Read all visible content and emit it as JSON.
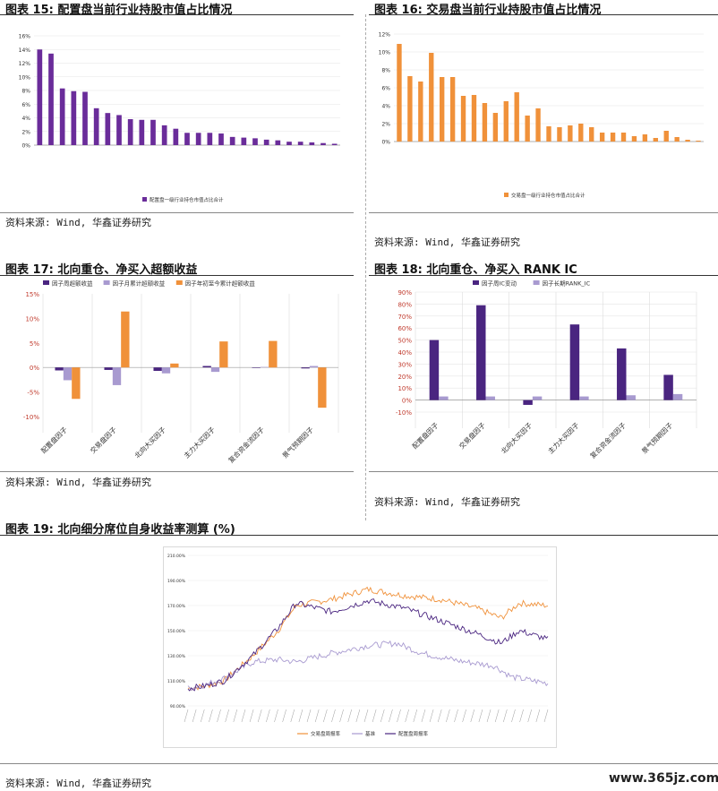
{
  "panels": {
    "p15": {
      "title": "图表 15: 配置盘当前行业持股市值占比情况",
      "source": "资料来源: Wind, 华鑫证券研究"
    },
    "p16": {
      "title": "图表 16: 交易盘当前行业持股市值占比情况",
      "source": "资料来源: Wind, 华鑫证券研究"
    },
    "p17": {
      "title": "图表 17: 北向重仓、净买入超额收益",
      "source": "资料来源: Wind, 华鑫证券研究"
    },
    "p18": {
      "title": "图表 18: 北向重仓、净买入 RANK IC",
      "source": "资料来源: Wind, 华鑫证券研究"
    },
    "p19": {
      "title": "图表 19: 北向细分席位自身收益率测算 (%)",
      "source": "资料来源: Wind, 华鑫证券研究"
    }
  },
  "watermark": "www.365jz.com",
  "colors": {
    "purple": "#6a2c9a",
    "orange": "#f0913a",
    "lavender": "#a89ad0",
    "dark_purple": "#4a2580"
  },
  "chart_data": [
    {
      "id": "c15",
      "type": "bar",
      "ylim": [
        0,
        16
      ],
      "yticks": [
        "0%",
        "2%",
        "4%",
        "6%",
        "8%",
        "10%",
        "12%",
        "14%",
        "16%"
      ],
      "values": [
        14.0,
        13.4,
        8.3,
        7.9,
        7.8,
        5.4,
        4.7,
        4.4,
        3.8,
        3.7,
        3.7,
        2.9,
        2.4,
        1.8,
        1.8,
        1.8,
        1.7,
        1.2,
        1.1,
        1.0,
        0.8,
        0.7,
        0.5,
        0.5,
        0.4,
        0.3,
        0.2
      ],
      "legend": "配置盘一级行业持仓市值占比合计",
      "color": "#6a2c9a"
    },
    {
      "id": "c16",
      "type": "bar",
      "ylim": [
        0,
        12
      ],
      "yticks": [
        "0%",
        "2%",
        "4%",
        "6%",
        "8%",
        "10%",
        "12%"
      ],
      "values": [
        10.9,
        7.3,
        6.7,
        9.9,
        7.2,
        7.2,
        5.1,
        5.2,
        4.3,
        3.2,
        4.5,
        5.5,
        2.9,
        3.7,
        1.7,
        1.6,
        1.8,
        2.0,
        1.6,
        1.0,
        1.0,
        1.0,
        0.6,
        0.8,
        0.4,
        1.2,
        0.5,
        0.2,
        0.1
      ],
      "legend": "交易盘一级行业持仓市值占比合计",
      "color": "#f0913a"
    },
    {
      "id": "c17",
      "type": "bar",
      "ylim": [
        -10,
        15
      ],
      "yticks": [
        "-10%",
        "-5%",
        "0%",
        "5%",
        "10%",
        "15%"
      ],
      "categories": [
        "配置盘因子",
        "交易盘因子",
        "北向大买因子",
        "主力大买因子",
        "复合资金流因子",
        "景气预期因子"
      ],
      "series": [
        {
          "name": "因子周超额收益",
          "color": "#4a2580",
          "values": [
            -0.6,
            -0.5,
            -0.7,
            0.3,
            -0.1,
            -0.2
          ]
        },
        {
          "name": "因子月累计超额收益",
          "color": "#a89ad0",
          "values": [
            -2.6,
            -3.6,
            -1.2,
            -0.9,
            0.1,
            0.3
          ]
        },
        {
          "name": "因子年初至今累计超额收益",
          "color": "#f0913a",
          "values": [
            -6.4,
            11.4,
            0.8,
            5.3,
            5.4,
            -8.2
          ]
        }
      ]
    },
    {
      "id": "c18",
      "type": "bar",
      "ylim": [
        -10,
        90
      ],
      "yticks": [
        "-10%",
        "0%",
        "10%",
        "20%",
        "30%",
        "40%",
        "50%",
        "60%",
        "70%",
        "80%",
        "90%"
      ],
      "categories": [
        "配置盘因子",
        "交易盘因子",
        "北向大买因子",
        "主力大买因子",
        "复合资金流因子",
        "景气预期因子"
      ],
      "series": [
        {
          "name": "因子周IC变动",
          "color": "#4a2580",
          "values": [
            50,
            79,
            -4,
            63,
            43,
            21
          ]
        },
        {
          "name": "因子长期RANK_IC",
          "color": "#a89ad0",
          "values": [
            3,
            3,
            3,
            3,
            4,
            5
          ]
        }
      ]
    },
    {
      "id": "c19",
      "type": "line",
      "ylim": [
        90,
        210
      ],
      "yticks": [
        "90.00%",
        "110.00%",
        "130.00%",
        "150.00%",
        "170.00%",
        "190.00%",
        "210.00%"
      ],
      "series": [
        {
          "name": "交易盘周报率",
          "color": "#f0913a"
        },
        {
          "name": "基准",
          "color": "#a89ad0"
        },
        {
          "name": "配置盘周报率",
          "color": "#4a2580"
        }
      ]
    }
  ]
}
